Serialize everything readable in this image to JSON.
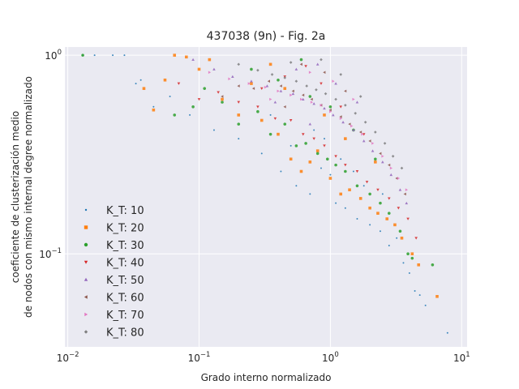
{
  "chart_data": {
    "type": "scatter",
    "title": "437038 (9n) - Fig. 2a",
    "xlabel": "Grado interno normalizado",
    "ylabel_lines": [
      "coeficiente de clusterización medio",
      "de nodos con mismo internal degree normalizado"
    ],
    "xscale": "log",
    "yscale": "log",
    "xlim": [
      0.0095,
      11
    ],
    "ylim": [
      0.034,
      1.1
    ],
    "x_ticks": [
      {
        "base": "10",
        "exp": "−2",
        "value": 0.01
      },
      {
        "base": "10",
        "exp": "−1",
        "value": 0.1
      },
      {
        "base": "10",
        "exp": "0",
        "value": 1
      },
      {
        "base": "10",
        "exp": "1",
        "value": 10
      }
    ],
    "y_ticks": [
      {
        "base": "10",
        "exp": "0",
        "value": 1
      },
      {
        "base": "10",
        "exp": "−1",
        "value": 0.1
      }
    ],
    "grid": true,
    "legend_position": "lower-left",
    "series": [
      {
        "name": "K_T: 10",
        "color": "#1f77b4",
        "marker": "point",
        "points": [
          [
            0.013,
            1.0
          ],
          [
            0.016,
            1.0
          ],
          [
            0.022,
            1.0
          ],
          [
            0.027,
            1.0
          ],
          [
            0.033,
            0.72
          ],
          [
            0.036,
            0.75
          ],
          [
            0.045,
            0.55
          ],
          [
            0.06,
            0.62
          ],
          [
            0.085,
            0.5
          ],
          [
            0.13,
            0.42
          ],
          [
            0.2,
            0.38
          ],
          [
            0.3,
            0.32
          ],
          [
            0.42,
            0.26
          ],
          [
            0.55,
            0.22
          ],
          [
            0.7,
            0.2
          ],
          [
            0.85,
            0.27
          ],
          [
            1.0,
            0.25
          ],
          [
            1.1,
            0.18
          ],
          [
            1.3,
            0.17
          ],
          [
            1.6,
            0.15
          ],
          [
            2.0,
            0.14
          ],
          [
            2.4,
            0.13
          ],
          [
            2.8,
            0.11
          ],
          [
            3.2,
            0.12
          ],
          [
            3.6,
            0.09
          ],
          [
            4.0,
            0.08
          ],
          [
            4.4,
            0.065
          ],
          [
            4.8,
            0.062
          ],
          [
            5.3,
            0.055
          ],
          [
            7.8,
            0.04
          ],
          [
            0.5,
            0.35
          ],
          [
            0.75,
            0.42
          ],
          [
            1.2,
            0.3
          ],
          [
            1.8,
            0.22
          ],
          [
            2.5,
            0.2
          ],
          [
            0.35,
            0.5
          ],
          [
            0.9,
            0.38
          ],
          [
            1.5,
            0.26
          ]
        ]
      },
      {
        "name": "K_T: 20",
        "color": "#ff7f0e",
        "marker": "square",
        "points": [
          [
            0.038,
            0.68
          ],
          [
            0.045,
            0.53
          ],
          [
            0.055,
            0.75
          ],
          [
            0.065,
            1.0
          ],
          [
            0.08,
            0.98
          ],
          [
            0.1,
            0.85
          ],
          [
            0.15,
            0.6
          ],
          [
            0.2,
            0.5
          ],
          [
            0.3,
            0.47
          ],
          [
            0.4,
            0.4
          ],
          [
            0.5,
            0.3
          ],
          [
            0.6,
            0.26
          ],
          [
            0.7,
            0.29
          ],
          [
            0.8,
            0.33
          ],
          [
            1.0,
            0.24
          ],
          [
            1.2,
            0.2
          ],
          [
            1.4,
            0.21
          ],
          [
            1.7,
            0.19
          ],
          [
            2.0,
            0.17
          ],
          [
            2.3,
            0.16
          ],
          [
            2.7,
            0.15
          ],
          [
            3.1,
            0.14
          ],
          [
            3.5,
            0.12
          ],
          [
            4.2,
            0.1
          ],
          [
            4.7,
            0.088
          ],
          [
            6.5,
            0.061
          ],
          [
            0.25,
            0.72
          ],
          [
            0.45,
            0.68
          ],
          [
            0.9,
            0.5
          ],
          [
            1.3,
            0.38
          ],
          [
            2.2,
            0.29
          ],
          [
            0.12,
            0.95
          ],
          [
            0.35,
            0.9
          ]
        ]
      },
      {
        "name": "K_T: 30",
        "color": "#2ca02c",
        "marker": "circle",
        "points": [
          [
            0.013,
            1.0
          ],
          [
            0.065,
            0.5
          ],
          [
            0.09,
            0.55
          ],
          [
            0.11,
            0.68
          ],
          [
            0.15,
            0.58
          ],
          [
            0.2,
            0.45
          ],
          [
            0.28,
            0.52
          ],
          [
            0.35,
            0.4
          ],
          [
            0.45,
            0.45
          ],
          [
            0.55,
            0.35
          ],
          [
            0.65,
            0.36
          ],
          [
            0.8,
            0.32
          ],
          [
            0.95,
            0.3
          ],
          [
            1.1,
            0.28
          ],
          [
            1.3,
            0.26
          ],
          [
            1.6,
            0.22
          ],
          [
            2.0,
            0.2
          ],
          [
            2.4,
            0.18
          ],
          [
            2.8,
            0.16
          ],
          [
            3.4,
            0.13
          ],
          [
            3.9,
            0.1
          ],
          [
            4.2,
            0.095
          ],
          [
            6.0,
            0.088
          ],
          [
            0.4,
            0.75
          ],
          [
            0.7,
            0.62
          ],
          [
            1.0,
            0.55
          ],
          [
            1.5,
            0.42
          ],
          [
            2.2,
            0.3
          ],
          [
            0.25,
            0.85
          ],
          [
            0.6,
            0.95
          ]
        ]
      },
      {
        "name": "K_T: 40",
        "color": "#d62728",
        "marker": "triangle_down",
        "points": [
          [
            0.07,
            0.72
          ],
          [
            0.1,
            0.6
          ],
          [
            0.14,
            0.65
          ],
          [
            0.2,
            0.58
          ],
          [
            0.28,
            0.55
          ],
          [
            0.38,
            0.48
          ],
          [
            0.5,
            0.47
          ],
          [
            0.62,
            0.4
          ],
          [
            0.75,
            0.38
          ],
          [
            0.9,
            0.35
          ],
          [
            1.1,
            0.31
          ],
          [
            1.3,
            0.28
          ],
          [
            1.6,
            0.26
          ],
          [
            1.9,
            0.23
          ],
          [
            2.3,
            0.21
          ],
          [
            2.8,
            0.19
          ],
          [
            3.3,
            0.17
          ],
          [
            3.9,
            0.15
          ],
          [
            4.5,
            0.12
          ],
          [
            0.45,
            0.78
          ],
          [
            0.65,
            0.88
          ],
          [
            0.85,
            0.72
          ],
          [
            1.2,
            0.55
          ],
          [
            1.8,
            0.4
          ],
          [
            0.3,
            0.68
          ]
        ]
      },
      {
        "name": "K_T: 50",
        "color": "#9467bd",
        "marker": "triangle_up",
        "points": [
          [
            0.09,
            0.95
          ],
          [
            0.13,
            0.85
          ],
          [
            0.18,
            0.78
          ],
          [
            0.25,
            0.74
          ],
          [
            0.33,
            0.7
          ],
          [
            0.42,
            0.66
          ],
          [
            0.52,
            0.64
          ],
          [
            0.62,
            0.6
          ],
          [
            0.75,
            0.57
          ],
          [
            0.9,
            0.54
          ],
          [
            1.05,
            0.5
          ],
          [
            1.25,
            0.46
          ],
          [
            1.5,
            0.42
          ],
          [
            1.8,
            0.37
          ],
          [
            2.1,
            0.33
          ],
          [
            2.5,
            0.29
          ],
          [
            2.9,
            0.25
          ],
          [
            3.4,
            0.21
          ],
          [
            3.8,
            0.18
          ],
          [
            0.55,
            0.85
          ],
          [
            0.8,
            0.9
          ],
          [
            1.1,
            0.72
          ],
          [
            1.6,
            0.58
          ],
          [
            0.38,
            0.58
          ],
          [
            0.7,
            0.45
          ]
        ]
      },
      {
        "name": "K_T: 60",
        "color": "#8c564b",
        "marker": "triangle_left",
        "points": [
          [
            0.15,
            0.62
          ],
          [
            0.2,
            0.7
          ],
          [
            0.26,
            0.68
          ],
          [
            0.34,
            0.74
          ],
          [
            0.42,
            0.7
          ],
          [
            0.52,
            0.66
          ],
          [
            0.62,
            0.63
          ],
          [
            0.72,
            0.6
          ],
          [
            0.85,
            0.56
          ],
          [
            1.0,
            0.53
          ],
          [
            1.2,
            0.49
          ],
          [
            1.4,
            0.45
          ],
          [
            1.7,
            0.41
          ],
          [
            2.0,
            0.37
          ],
          [
            2.4,
            0.32
          ],
          [
            2.8,
            0.28
          ],
          [
            3.2,
            0.24
          ],
          [
            3.7,
            0.2
          ],
          [
            0.6,
            0.9
          ],
          [
            0.9,
            0.82
          ],
          [
            1.3,
            0.66
          ],
          [
            0.45,
            0.55
          ]
        ]
      },
      {
        "name": "K_T: 70",
        "color": "#e377c2",
        "marker": "triangle_right",
        "points": [
          [
            0.12,
            0.82
          ],
          [
            0.17,
            0.76
          ],
          [
            0.24,
            0.72
          ],
          [
            0.32,
            0.69
          ],
          [
            0.4,
            0.66
          ],
          [
            0.5,
            0.63
          ],
          [
            0.6,
            0.6
          ],
          [
            0.72,
            0.58
          ],
          [
            0.85,
            0.56
          ],
          [
            1.0,
            0.52
          ],
          [
            1.2,
            0.48
          ],
          [
            1.45,
            0.44
          ],
          [
            1.75,
            0.4
          ],
          [
            2.1,
            0.36
          ],
          [
            2.5,
            0.31
          ],
          [
            2.9,
            0.27
          ],
          [
            3.3,
            0.24
          ],
          [
            3.8,
            0.21
          ],
          [
            0.7,
            0.82
          ],
          [
            1.05,
            0.74
          ],
          [
            1.5,
            0.6
          ],
          [
            0.35,
            0.6
          ]
        ]
      },
      {
        "name": "K_T: 80",
        "color": "#7f7f7f",
        "marker": "diamond",
        "points": [
          [
            0.2,
            0.9
          ],
          [
            0.28,
            0.84
          ],
          [
            0.36,
            0.8
          ],
          [
            0.45,
            0.77
          ],
          [
            0.55,
            0.74
          ],
          [
            0.66,
            0.7
          ],
          [
            0.78,
            0.67
          ],
          [
            0.92,
            0.64
          ],
          [
            1.1,
            0.6
          ],
          [
            1.3,
            0.56
          ],
          [
            1.55,
            0.51
          ],
          [
            1.85,
            0.46
          ],
          [
            2.2,
            0.41
          ],
          [
            2.6,
            0.36
          ],
          [
            3.0,
            0.31
          ],
          [
            3.5,
            0.27
          ],
          [
            0.85,
            0.95
          ],
          [
            1.2,
            0.8
          ],
          [
            1.7,
            0.62
          ],
          [
            0.5,
            0.92
          ]
        ]
      }
    ]
  }
}
